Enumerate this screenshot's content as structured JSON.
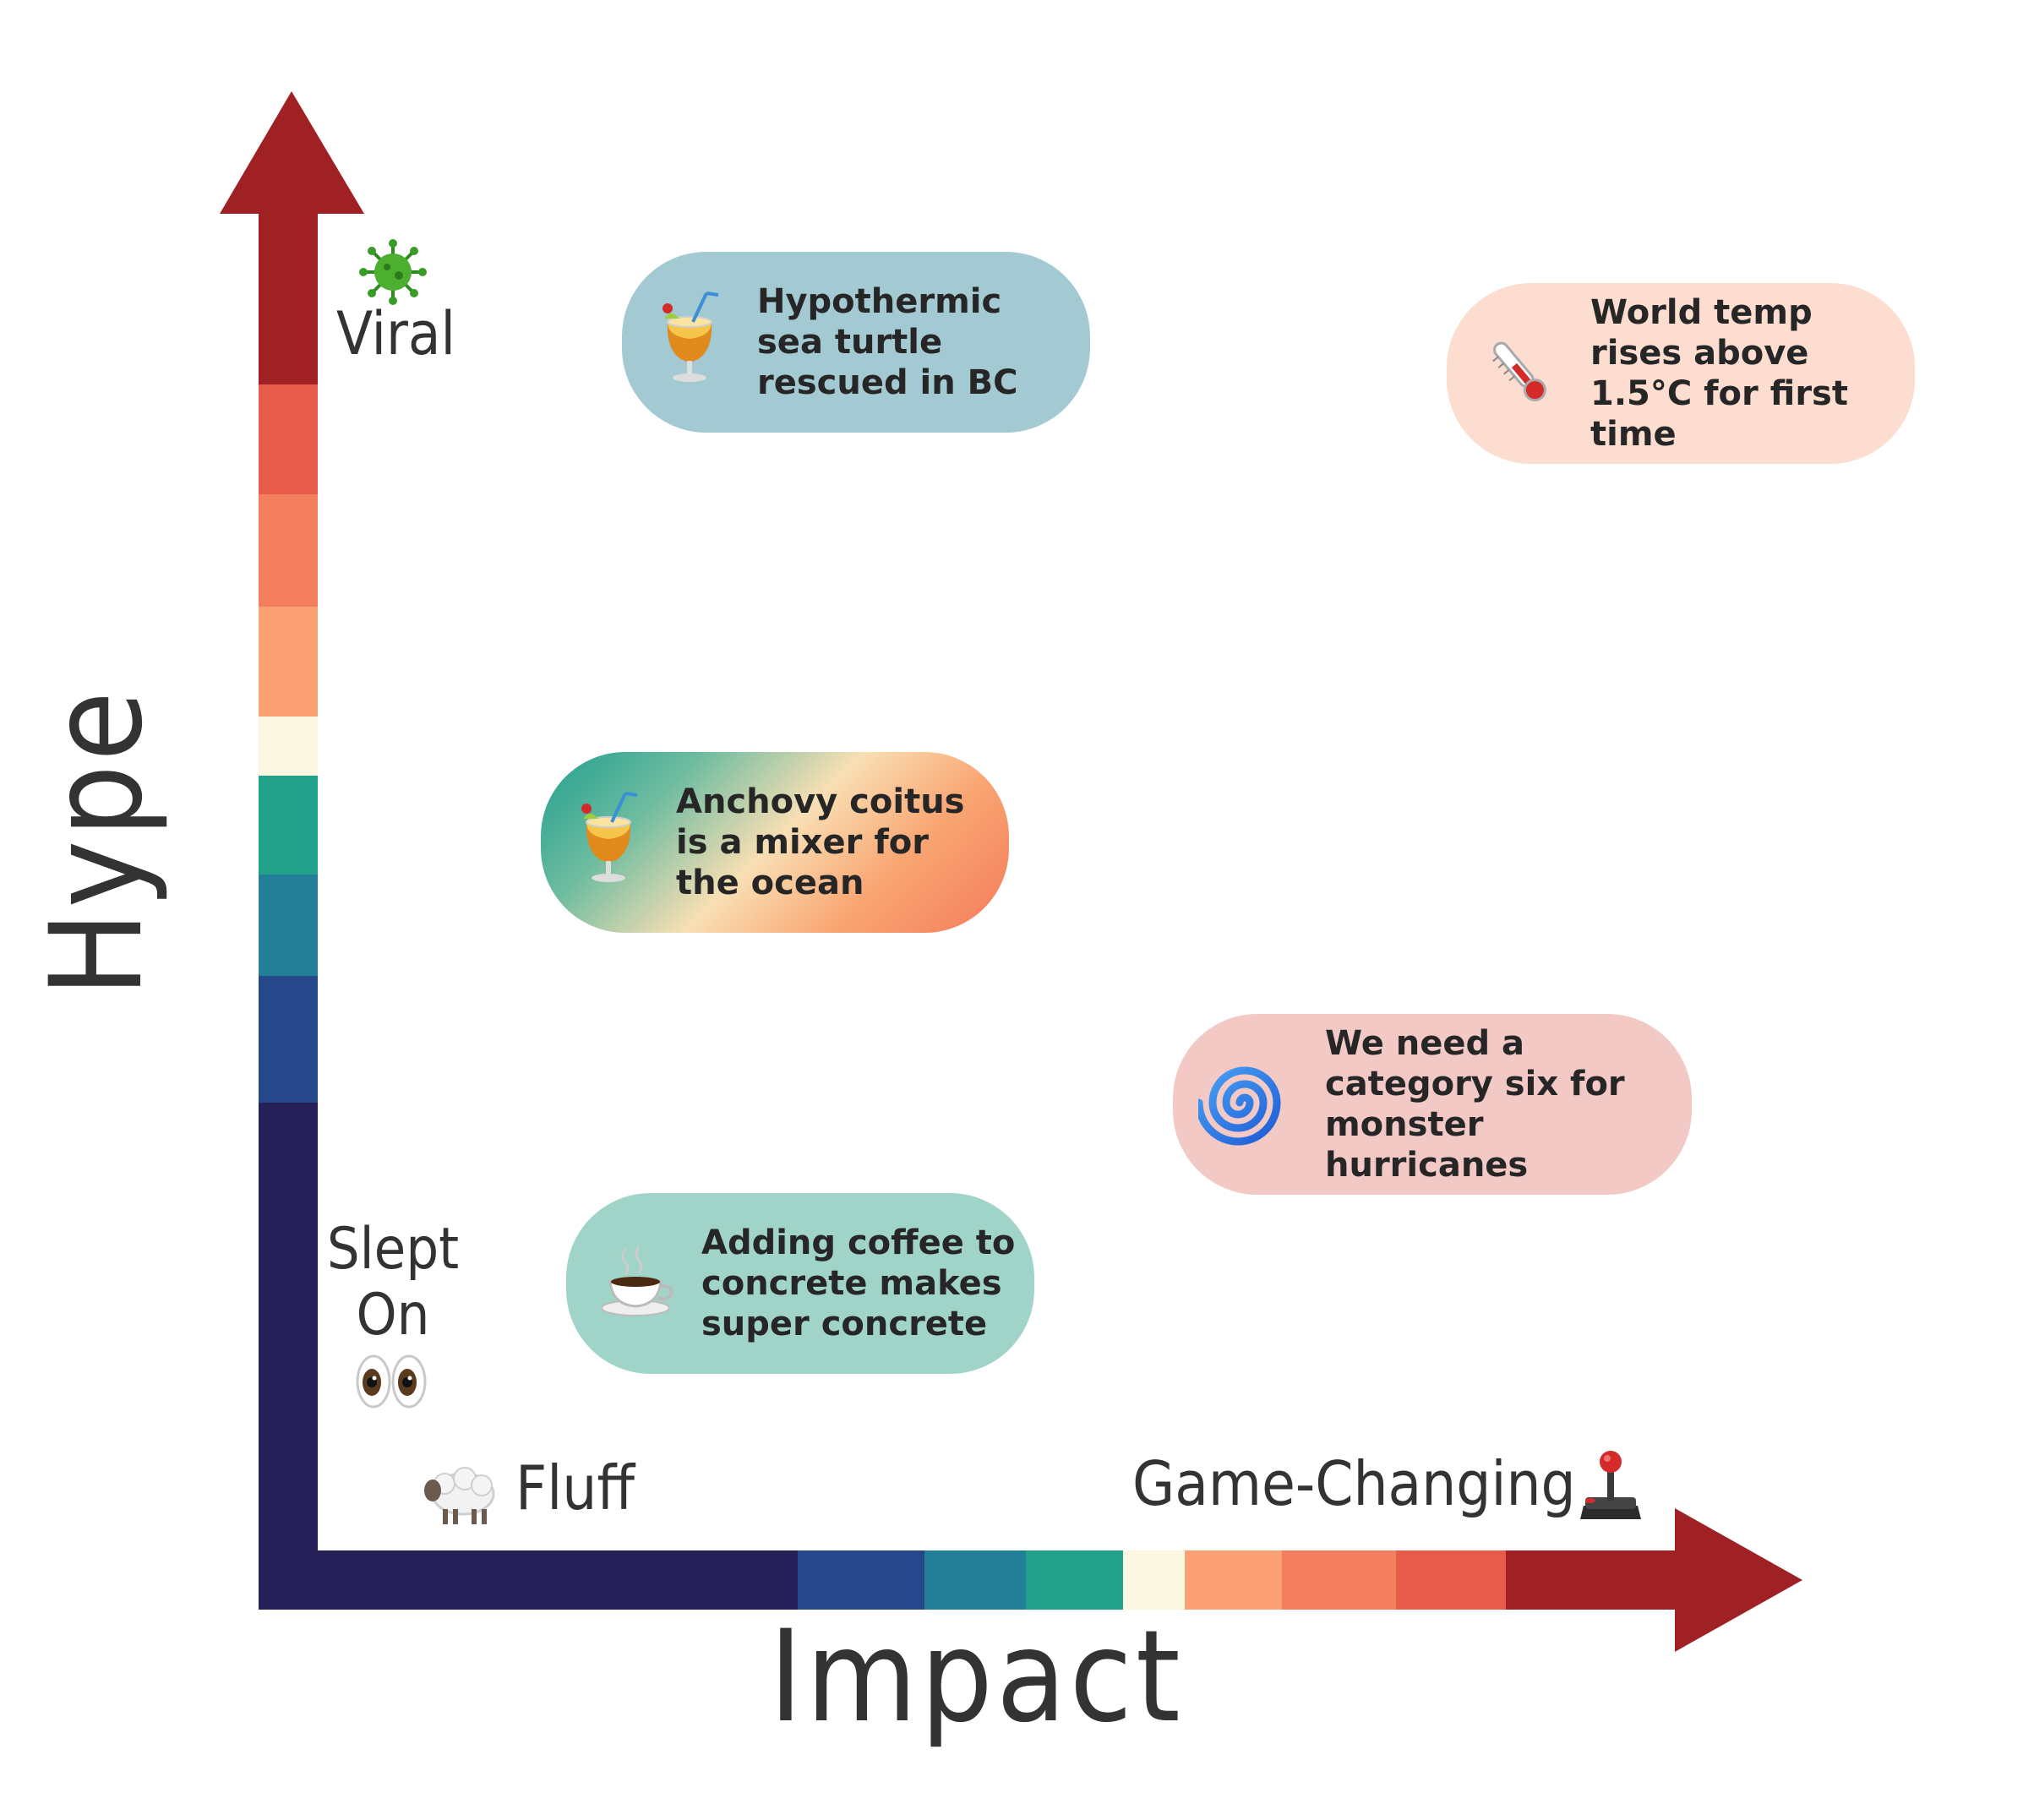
{
  "axes": {
    "x_label": "Impact",
    "y_label": "Hype",
    "y_top_label": "Viral",
    "y_top_icon": "virus-icon",
    "y_bottom_label": "Slept On",
    "y_bottom_icon": "eyes-icon",
    "x_left_label": "Fluff",
    "x_left_icon": "sheep-icon",
    "x_right_label": "Game-Changing",
    "x_right_icon": "joystick-icon"
  },
  "colors": {
    "band_navy": "#262059",
    "band_blue": "#26478a",
    "band_teal_dark": "#227f97",
    "band_teal": "#22a18a",
    "band_cream": "#fcf7e0",
    "band_peach": "#fca173",
    "band_salmon": "#f47f5f",
    "band_coral": "#e65b4a",
    "band_red": "#a02123"
  },
  "cards": [
    {
      "id": "turtle",
      "text": "Hypothermic sea turtle rescued in BC",
      "icon": "tropical-drink-icon",
      "color": "#a3c9d2"
    },
    {
      "id": "temp",
      "text": "World temp rises above 1.5°C for first time",
      "icon": "thermometer-icon",
      "color": "#fcddd0"
    },
    {
      "id": "anchovy",
      "text": "Anchovy coitus is a mixer for the ocean",
      "icon": "tropical-drink-icon",
      "color": "gradient"
    },
    {
      "id": "hurricane",
      "text": "We need a category six for monster hurricanes",
      "icon": "cyclone-icon",
      "color": "#f2c9c4"
    },
    {
      "id": "coffee",
      "text": "Adding coffee to concrete makes super concrete",
      "icon": "coffee-icon",
      "color": "#a1d4c8"
    }
  ]
}
